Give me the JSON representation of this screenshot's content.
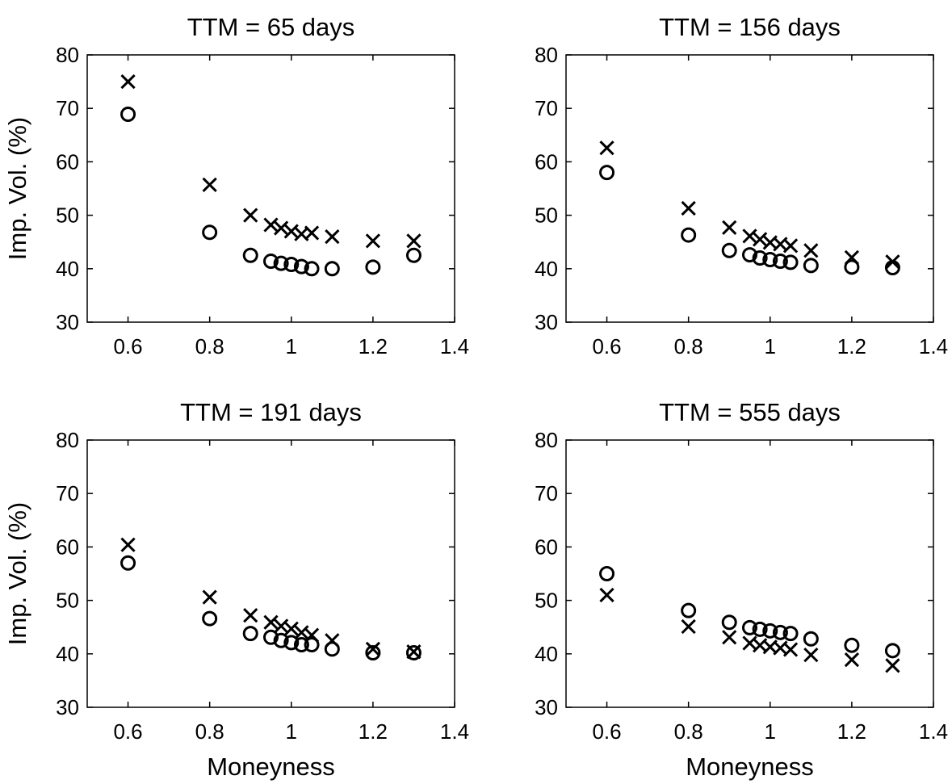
{
  "chart_data": [
    {
      "type": "scatter",
      "title": "TTM = 65 days",
      "xlabel": "",
      "ylabel": "Imp. Vol. (%)",
      "xlim": [
        0.5,
        1.4
      ],
      "ylim": [
        30,
        80
      ],
      "xticks": [
        "0.6",
        "0.8",
        "1",
        "1.2",
        "1.4"
      ],
      "yticks": [
        "30",
        "40",
        "50",
        "60",
        "70",
        "80"
      ],
      "grid": false,
      "series": [
        {
          "marker": "x",
          "x": [
            0.6,
            0.8,
            0.9,
            0.95,
            0.975,
            1.0,
            1.025,
            1.05,
            1.1,
            1.2,
            1.3
          ],
          "y": [
            75.0,
            55.7,
            50.0,
            48.2,
            47.6,
            47.0,
            46.5,
            46.7,
            46.0,
            45.2,
            45.2
          ]
        },
        {
          "marker": "o",
          "x": [
            0.6,
            0.8,
            0.9,
            0.95,
            0.975,
            1.0,
            1.025,
            1.05,
            1.1,
            1.2,
            1.3
          ],
          "y": [
            68.9,
            46.8,
            42.5,
            41.4,
            41.0,
            40.8,
            40.4,
            40.0,
            40.0,
            40.3,
            42.5
          ]
        }
      ]
    },
    {
      "type": "scatter",
      "title": "TTM = 156 days",
      "xlabel": "",
      "ylabel": "",
      "xlim": [
        0.5,
        1.4
      ],
      "ylim": [
        30,
        80
      ],
      "xticks": [
        "0.6",
        "0.8",
        "1",
        "1.2",
        "1.4"
      ],
      "yticks": [
        "30",
        "40",
        "50",
        "60",
        "70",
        "80"
      ],
      "grid": false,
      "series": [
        {
          "marker": "x",
          "x": [
            0.6,
            0.8,
            0.9,
            0.95,
            0.975,
            1.0,
            1.025,
            1.05,
            1.1,
            1.2,
            1.3
          ],
          "y": [
            62.6,
            51.3,
            47.7,
            46.1,
            45.5,
            44.9,
            44.6,
            44.3,
            43.4,
            42.1,
            41.3
          ]
        },
        {
          "marker": "o",
          "x": [
            0.6,
            0.8,
            0.9,
            0.95,
            0.975,
            1.0,
            1.025,
            1.05,
            1.1,
            1.2,
            1.3
          ],
          "y": [
            58.0,
            46.3,
            43.4,
            42.6,
            42.0,
            41.7,
            41.4,
            41.2,
            40.6,
            40.3,
            40.2
          ]
        }
      ]
    },
    {
      "type": "scatter",
      "title": "TTM = 191 days",
      "xlabel": "Moneyness",
      "ylabel": "Imp. Vol. (%)",
      "xlim": [
        0.5,
        1.4
      ],
      "ylim": [
        30,
        80
      ],
      "xticks": [
        "0.6",
        "0.8",
        "1",
        "1.2",
        "1.4"
      ],
      "yticks": [
        "30",
        "40",
        "50",
        "60",
        "70",
        "80"
      ],
      "grid": false,
      "series": [
        {
          "marker": "x",
          "x": [
            0.6,
            0.8,
            0.9,
            0.95,
            0.975,
            1.0,
            1.025,
            1.05,
            1.1,
            1.2,
            1.3
          ],
          "y": [
            60.4,
            50.6,
            47.2,
            45.9,
            45.2,
            44.7,
            44.0,
            43.5,
            42.5,
            40.9,
            40.4
          ]
        },
        {
          "marker": "o",
          "x": [
            0.6,
            0.8,
            0.9,
            0.95,
            0.975,
            1.0,
            1.025,
            1.05,
            1.1,
            1.2,
            1.3
          ],
          "y": [
            57.0,
            46.6,
            43.8,
            43.1,
            42.5,
            42.1,
            41.7,
            41.7,
            40.9,
            40.2,
            40.2
          ]
        }
      ]
    },
    {
      "type": "scatter",
      "title": "TTM = 555 days",
      "xlabel": "Moneyness",
      "ylabel": "",
      "xlim": [
        0.5,
        1.4
      ],
      "ylim": [
        30,
        80
      ],
      "xticks": [
        "0.6",
        "0.8",
        "1",
        "1.2",
        "1.4"
      ],
      "yticks": [
        "30",
        "40",
        "50",
        "60",
        "70",
        "80"
      ],
      "grid": false,
      "series": [
        {
          "marker": "x",
          "x": [
            0.6,
            0.8,
            0.9,
            0.95,
            0.975,
            1.0,
            1.025,
            1.05,
            1.1,
            1.2,
            1.3
          ],
          "y": [
            51.0,
            45.1,
            43.1,
            42.0,
            41.6,
            41.3,
            41.1,
            40.8,
            39.8,
            38.9,
            37.8
          ]
        },
        {
          "marker": "o",
          "x": [
            0.6,
            0.8,
            0.9,
            0.95,
            0.975,
            1.0,
            1.025,
            1.05,
            1.1,
            1.2,
            1.3
          ],
          "y": [
            55.0,
            48.1,
            45.9,
            44.9,
            44.6,
            44.3,
            44.0,
            43.8,
            42.8,
            41.6,
            40.6
          ]
        }
      ]
    }
  ]
}
